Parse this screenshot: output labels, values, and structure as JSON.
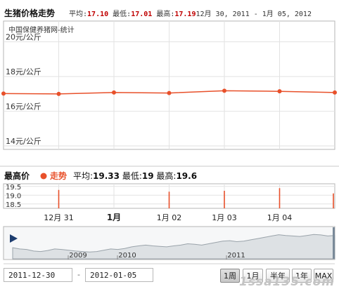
{
  "header": {
    "title": "生猪价格走势",
    "avg_label": "平均:",
    "avg_value": "17.10",
    "min_label": "最低:",
    "min_value": "17.01",
    "max_label": "最高:",
    "max_value": "17.19",
    "date_range": "12月 30, 2011 - 1月 05, 2012"
  },
  "chart_data": {
    "type": "line",
    "subtitle": "中国保健养猪网-统计",
    "y_tick_labels": [
      "20元/公斤",
      "18元/公斤",
      "16元/公斤",
      "14元/公斤"
    ],
    "y_ticks": [
      20,
      18,
      16,
      14
    ],
    "ylim": [
      13.8,
      21.2
    ],
    "xlim": [
      0,
      6
    ],
    "x_tick_labels": [
      "12月 31",
      "1月",
      "1月 02",
      "1月 03",
      "1月 04"
    ],
    "x_ticks": [
      1,
      2,
      3,
      4,
      5
    ],
    "bold_x_tick": "1月",
    "line_color": "#e8502a",
    "series": [
      {
        "x": [
          0,
          1,
          2,
          3,
          4,
          5,
          6
        ],
        "y": [
          17.02,
          17.0,
          17.08,
          17.05,
          17.18,
          17.15,
          17.08
        ]
      }
    ],
    "grid": true
  },
  "lower_panel": {
    "title": "最高价",
    "legend_label": "走势",
    "legend_color": "#e8502a",
    "avg_label": "平均:",
    "avg_value": "19.33",
    "min_label": "最低:",
    "min_value": "19",
    "max_label": "最高:",
    "max_value": "19.6",
    "y_tick_labels": [
      "19.5",
      "19.0",
      "18.5"
    ],
    "y_ticks": [
      19.5,
      19.0,
      18.5
    ],
    "ylim": [
      18.25,
      19.65
    ],
    "bar_color": "#e8502a",
    "bars": [
      {
        "x": 1,
        "value": 19.3
      },
      {
        "x": 3,
        "value": 19.2
      },
      {
        "x": 4,
        "value": 19.25
      },
      {
        "x": 5,
        "value": 19.4
      },
      {
        "x": 6,
        "value": 19.1
      }
    ]
  },
  "navigator": {
    "year_labels": [
      "2009",
      "2010",
      "2011"
    ],
    "fill_color": "#dde1e4",
    "line_color": "#9aa3aa",
    "series": [
      0.35,
      0.3,
      0.28,
      0.22,
      0.2,
      0.24,
      0.3,
      0.28,
      0.25,
      0.22,
      0.2,
      0.18,
      0.2,
      0.25,
      0.3,
      0.28,
      0.32,
      0.38,
      0.42,
      0.45,
      0.42,
      0.4,
      0.38,
      0.42,
      0.45,
      0.5,
      0.48,
      0.45,
      0.5,
      0.55,
      0.6,
      0.62,
      0.58,
      0.6,
      0.65,
      0.7,
      0.75,
      0.8,
      0.85,
      0.82,
      0.8,
      0.78,
      0.82,
      0.86,
      0.84,
      0.8,
      0.82
    ]
  },
  "controls": {
    "start_date": "2011-12-30",
    "end_date": "2012-01-05",
    "separator": "-",
    "range_buttons": [
      "1周",
      "1月",
      "半年",
      "1年",
      "MAX"
    ],
    "active_range": "1周"
  },
  "watermark": "1ssa135.com"
}
